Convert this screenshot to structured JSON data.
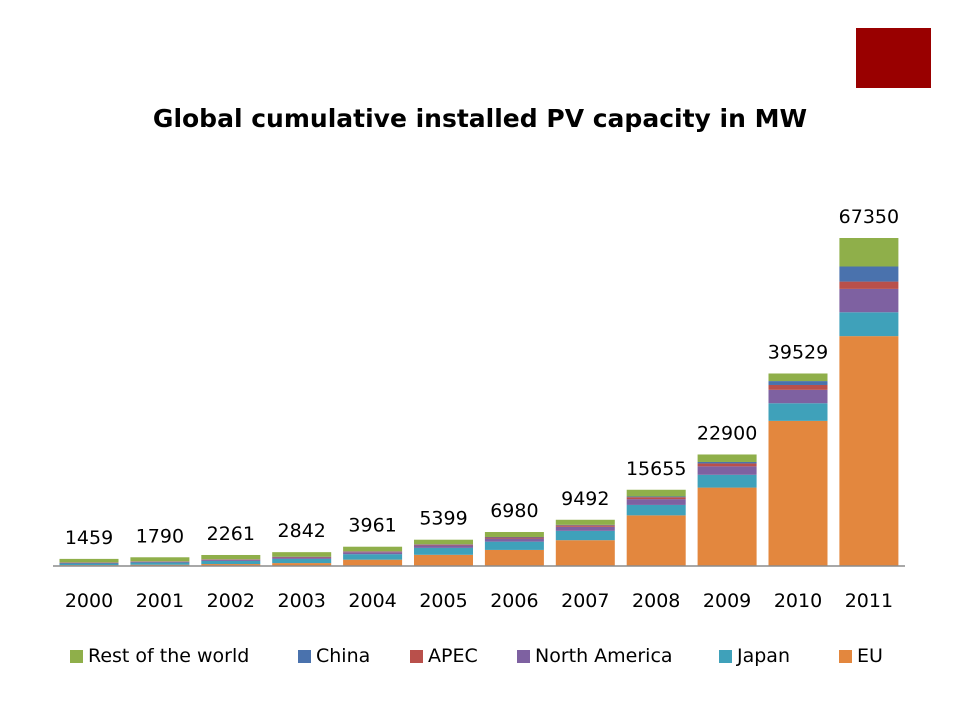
{
  "slide": {
    "accent_color": "#990000"
  },
  "chart_data": {
    "type": "bar",
    "stacked": true,
    "title": "Global cumulative installed PV capacity in MW",
    "xlabel": "",
    "ylabel": "",
    "categories": [
      "2000",
      "2001",
      "2002",
      "2003",
      "2004",
      "2005",
      "2006",
      "2007",
      "2008",
      "2009",
      "2010",
      "2011"
    ],
    "totals": [
      1459,
      1790,
      2261,
      2842,
      3961,
      5399,
      6980,
      9492,
      15655,
      22900,
      39529,
      67350
    ],
    "ylim": [
      0,
      70000
    ],
    "grid": false,
    "legend_position": "bottom",
    "series": [
      {
        "name": "EU",
        "color": "#E3873E",
        "values": [
          185,
          260,
          400,
          600,
          1300,
          2300,
          3300,
          5300,
          10400,
          16100,
          29800,
          47200
        ]
      },
      {
        "name": "Japan",
        "color": "#3FA1BA",
        "values": [
          330,
          450,
          640,
          860,
          1130,
          1420,
          1700,
          1920,
          2140,
          2630,
          3620,
          4900
        ]
      },
      {
        "name": "North America",
        "color": "#7E61A1",
        "values": [
          150,
          170,
          230,
          300,
          400,
          500,
          630,
          830,
          1190,
          1730,
          2750,
          4800
        ]
      },
      {
        "name": "APEC",
        "color": "#B9504B",
        "values": [
          50,
          60,
          80,
          100,
          130,
          170,
          230,
          300,
          400,
          600,
          1000,
          1500
        ]
      },
      {
        "name": "China",
        "color": "#4A72AD",
        "values": [
          20,
          25,
          40,
          50,
          70,
          80,
          100,
          100,
          150,
          300,
          800,
          3100
        ]
      },
      {
        "name": "Rest of the world",
        "color": "#8FAF4A",
        "values": [
          724,
          825,
          871,
          932,
          931,
          929,
          1020,
          1042,
          1375,
          1540,
          1559,
          5850
        ]
      }
    ]
  }
}
